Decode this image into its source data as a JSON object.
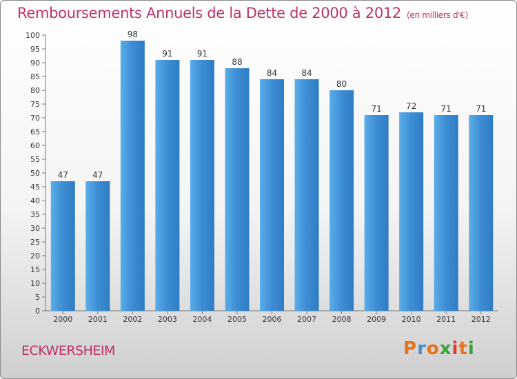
{
  "chart_data": {
    "type": "bar",
    "title": "Remboursements Annuels de la Dette de 2000 à 2012",
    "unit_label": "(en milliers d'€)",
    "categories": [
      "2000",
      "2001",
      "2002",
      "2003",
      "2004",
      "2005",
      "2006",
      "2007",
      "2008",
      "2009",
      "2010",
      "2011",
      "2012"
    ],
    "values": [
      47,
      47,
      98,
      91,
      91,
      88,
      84,
      84,
      80,
      71,
      72,
      71,
      71
    ],
    "ylim": [
      0,
      100
    ],
    "ytick_step": 5,
    "grid": false,
    "legend": "none",
    "bar_color": "#3f8fd6",
    "bar_color_light": "#5aaee8",
    "bar_color_dark": "#2f7cc4"
  },
  "footer": {
    "city": "ECKWERSHEIM",
    "brand": "Proxiti",
    "brand_colors": [
      "#e8731e",
      "#4a8fd0",
      "#e8731e",
      "#3aa13a",
      "#e23a2a",
      "#e8731e",
      "#3aa13a"
    ]
  }
}
